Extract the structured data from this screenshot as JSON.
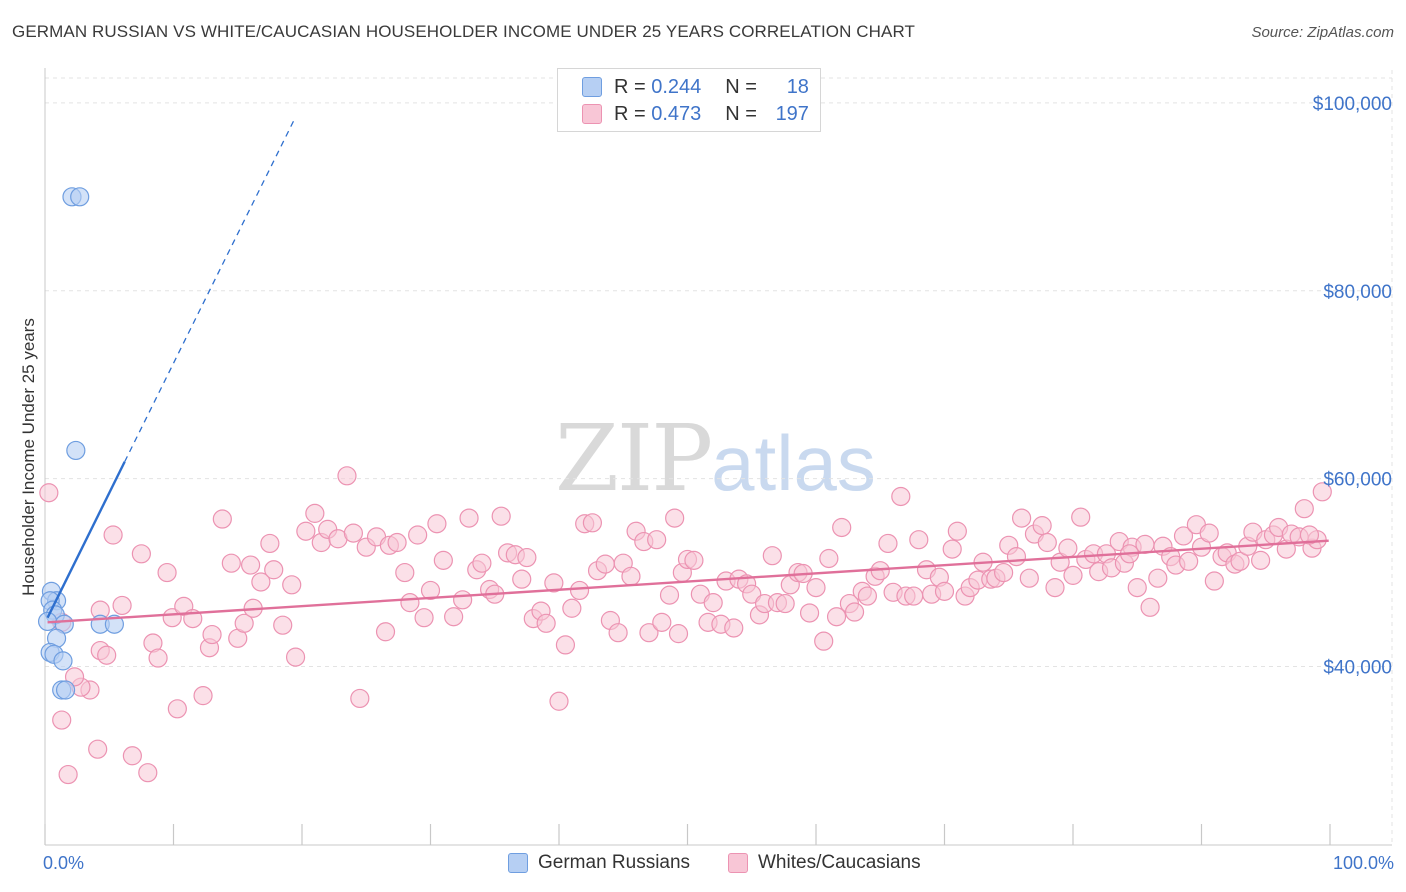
{
  "header": {
    "title": "GERMAN RUSSIAN VS WHITE/CAUCASIAN HOUSEHOLDER INCOME UNDER 25 YEARS CORRELATION CHART",
    "source": "Source: ZipAtlas.com"
  },
  "legend": {
    "rows": [
      {
        "r_label": "R =",
        "r_value": "0.244",
        "n_label": "N =",
        "n_value": "18"
      },
      {
        "r_label": "R =",
        "r_value": "0.473",
        "n_label": "N =",
        "n_value": "197"
      }
    ]
  },
  "bottom_legend": {
    "items": [
      "German Russians",
      "Whites/Caucasians"
    ]
  },
  "watermark": {
    "zip": "ZIP",
    "atlas": "atlas"
  },
  "colors": {
    "blue_fill": "#b6cff3",
    "blue_stroke": "#6f9ee0",
    "blue_line": "#2e6fce",
    "pink_fill": "#f8c6d6",
    "pink_stroke": "#ec93b2",
    "pink_line": "#e0709a",
    "tick_text": "#3f74c9",
    "grid": "#e3e3e3"
  },
  "chart_data": {
    "type": "scatter",
    "title": "GERMAN RUSSIAN VS WHITE/CAUCASIAN HOUSEHOLDER INCOME UNDER 25 YEARS CORRELATION CHART",
    "xlabel": "",
    "ylabel": "Householder Income Under 25 years",
    "xlim": [
      0,
      100
    ],
    "ylim": [
      21000,
      103500
    ],
    "x_ticks": [
      "0.0%",
      "100.0%"
    ],
    "y_ticks": [
      {
        "value": 40000,
        "label": "$40,000"
      },
      {
        "value": 60000,
        "label": "$60,000"
      },
      {
        "value": 80000,
        "label": "$80,000"
      },
      {
        "value": 100000,
        "label": "$100,000"
      }
    ],
    "grid": true,
    "legend_position": "top-center",
    "series": [
      {
        "name": "German Russians",
        "r": 0.244,
        "n": 18,
        "trend": {
          "x": [
            0.2,
            6.2
          ],
          "y": [
            45200,
            61800
          ],
          "dashed_to": [
            19.5,
            98500
          ]
        },
        "points": [
          [
            2.1,
            90000
          ],
          [
            2.7,
            90000
          ],
          [
            2.4,
            63000
          ],
          [
            0.5,
            48000
          ],
          [
            0.9,
            47000
          ],
          [
            0.4,
            47000
          ],
          [
            0.6,
            46000
          ],
          [
            0.8,
            45500
          ],
          [
            0.2,
            44800
          ],
          [
            1.5,
            44500
          ],
          [
            4.3,
            44500
          ],
          [
            5.4,
            44500
          ],
          [
            0.9,
            43000
          ],
          [
            0.4,
            41500
          ],
          [
            0.7,
            41300
          ],
          [
            1.4,
            40600
          ],
          [
            1.3,
            37500
          ],
          [
            1.6,
            37500
          ]
        ]
      },
      {
        "name": "Whites/Caucasians",
        "r": 0.473,
        "n": 197,
        "trend": {
          "x": [
            0.2,
            99.9
          ],
          "y": [
            44700,
            53400
          ]
        },
        "points": [
          [
            0.3,
            58500
          ],
          [
            5.3,
            54000
          ],
          [
            7.5,
            52000
          ],
          [
            9.5,
            50000
          ],
          [
            6.0,
            46500
          ],
          [
            4.3,
            46000
          ],
          [
            1.3,
            44700
          ],
          [
            3.5,
            37500
          ],
          [
            2.8,
            37800
          ],
          [
            2.3,
            38900
          ],
          [
            1.3,
            34300
          ],
          [
            4.1,
            31200
          ],
          [
            1.8,
            28500
          ],
          [
            6.8,
            30500
          ],
          [
            8.0,
            28700
          ],
          [
            10.3,
            35500
          ],
          [
            12.3,
            36900
          ],
          [
            4.3,
            41700
          ],
          [
            4.8,
            41200
          ],
          [
            8.4,
            42500
          ],
          [
            8.8,
            40900
          ],
          [
            9.9,
            45200
          ],
          [
            10.8,
            46400
          ],
          [
            11.5,
            45100
          ],
          [
            12.8,
            42000
          ],
          [
            13.0,
            43400
          ],
          [
            13.8,
            55700
          ],
          [
            14.5,
            51000
          ],
          [
            15.0,
            43000
          ],
          [
            15.5,
            44600
          ],
          [
            16.0,
            50800
          ],
          [
            16.2,
            46200
          ],
          [
            16.8,
            49000
          ],
          [
            17.5,
            53100
          ],
          [
            17.8,
            50300
          ],
          [
            18.5,
            44400
          ],
          [
            19.2,
            48700
          ],
          [
            19.5,
            41000
          ],
          [
            20.3,
            54400
          ],
          [
            21.0,
            56300
          ],
          [
            21.5,
            53200
          ],
          [
            22.0,
            54600
          ],
          [
            22.8,
            53600
          ],
          [
            23.5,
            60300
          ],
          [
            24.0,
            54200
          ],
          [
            24.5,
            36600
          ],
          [
            25.0,
            52700
          ],
          [
            25.8,
            53800
          ],
          [
            26.5,
            43700
          ],
          [
            26.8,
            52900
          ],
          [
            27.4,
            53200
          ],
          [
            28.0,
            50000
          ],
          [
            28.4,
            46800
          ],
          [
            29.0,
            54000
          ],
          [
            29.5,
            45200
          ],
          [
            30.0,
            48100
          ],
          [
            30.5,
            55200
          ],
          [
            31.0,
            51300
          ],
          [
            31.8,
            45300
          ],
          [
            32.5,
            47100
          ],
          [
            33.0,
            55800
          ],
          [
            33.6,
            50300
          ],
          [
            34.0,
            51000
          ],
          [
            34.6,
            48200
          ],
          [
            35.0,
            47700
          ],
          [
            35.5,
            56000
          ],
          [
            36.0,
            52100
          ],
          [
            36.6,
            51900
          ],
          [
            37.1,
            49300
          ],
          [
            37.5,
            51600
          ],
          [
            38.0,
            45100
          ],
          [
            38.6,
            45900
          ],
          [
            39.0,
            44600
          ],
          [
            39.6,
            48900
          ],
          [
            40.0,
            36300
          ],
          [
            40.5,
            42300
          ],
          [
            41.0,
            46200
          ],
          [
            41.6,
            48100
          ],
          [
            42.0,
            55200
          ],
          [
            42.6,
            55300
          ],
          [
            43.0,
            50200
          ],
          [
            43.6,
            50900
          ],
          [
            44.0,
            44900
          ],
          [
            44.6,
            43600
          ],
          [
            45.0,
            51000
          ],
          [
            45.6,
            49600
          ],
          [
            46.0,
            54400
          ],
          [
            46.6,
            53300
          ],
          [
            47.0,
            43600
          ],
          [
            47.6,
            53500
          ],
          [
            48.0,
            44700
          ],
          [
            48.6,
            47600
          ],
          [
            49.0,
            55800
          ],
          [
            49.6,
            50000
          ],
          [
            50.0,
            51400
          ],
          [
            50.5,
            51300
          ],
          [
            51.0,
            47700
          ],
          [
            51.6,
            44700
          ],
          [
            52.0,
            46800
          ],
          [
            52.6,
            44500
          ],
          [
            53.0,
            49100
          ],
          [
            53.6,
            44100
          ],
          [
            54.0,
            49300
          ],
          [
            54.6,
            48800
          ],
          [
            55.0,
            47700
          ],
          [
            55.6,
            45500
          ],
          [
            56.0,
            46700
          ],
          [
            56.6,
            51800
          ],
          [
            57.0,
            46800
          ],
          [
            57.6,
            46700
          ],
          [
            58.0,
            48700
          ],
          [
            58.6,
            50000
          ],
          [
            59.0,
            49900
          ],
          [
            59.5,
            45700
          ],
          [
            60.0,
            48400
          ],
          [
            60.6,
            42700
          ],
          [
            61.0,
            51500
          ],
          [
            61.6,
            45300
          ],
          [
            62.0,
            54800
          ],
          [
            62.6,
            46700
          ],
          [
            63.0,
            45800
          ],
          [
            63.6,
            48000
          ],
          [
            64.0,
            47500
          ],
          [
            64.6,
            49600
          ],
          [
            65.0,
            50200
          ],
          [
            65.6,
            53100
          ],
          [
            66.0,
            47900
          ],
          [
            66.6,
            58100
          ],
          [
            67.0,
            47500
          ],
          [
            67.6,
            47500
          ],
          [
            68.0,
            53500
          ],
          [
            68.6,
            50300
          ],
          [
            69.0,
            47700
          ],
          [
            69.6,
            49500
          ],
          [
            70.0,
            48000
          ],
          [
            70.6,
            52500
          ],
          [
            71.0,
            54400
          ],
          [
            71.6,
            47500
          ],
          [
            72.0,
            48400
          ],
          [
            72.6,
            49200
          ],
          [
            73.0,
            51100
          ],
          [
            73.6,
            49300
          ],
          [
            74.0,
            49400
          ],
          [
            74.6,
            50000
          ],
          [
            75.0,
            52900
          ],
          [
            75.6,
            51700
          ],
          [
            76.0,
            55800
          ],
          [
            76.6,
            49400
          ],
          [
            77.0,
            54100
          ],
          [
            77.6,
            55000
          ],
          [
            78.0,
            53200
          ],
          [
            78.6,
            48400
          ],
          [
            79.0,
            51100
          ],
          [
            79.6,
            52600
          ],
          [
            80.0,
            49700
          ],
          [
            80.6,
            55900
          ],
          [
            81.0,
            51400
          ],
          [
            81.6,
            52000
          ],
          [
            82.0,
            50100
          ],
          [
            82.6,
            52000
          ],
          [
            83.0,
            50500
          ],
          [
            83.6,
            53300
          ],
          [
            84.0,
            51000
          ],
          [
            84.6,
            52700
          ],
          [
            85.0,
            48400
          ],
          [
            85.6,
            53000
          ],
          [
            86.0,
            46300
          ],
          [
            86.6,
            49400
          ],
          [
            87.0,
            52800
          ],
          [
            87.6,
            51700
          ],
          [
            88.0,
            50800
          ],
          [
            88.6,
            53900
          ],
          [
            89.0,
            51200
          ],
          [
            89.6,
            55100
          ],
          [
            90.0,
            52700
          ],
          [
            90.6,
            54200
          ],
          [
            91.0,
            49100
          ],
          [
            91.6,
            51700
          ],
          [
            92.0,
            52100
          ],
          [
            92.6,
            50900
          ],
          [
            93.0,
            51200
          ],
          [
            93.6,
            52800
          ],
          [
            94.0,
            54300
          ],
          [
            94.6,
            51300
          ],
          [
            95.0,
            53500
          ],
          [
            95.6,
            54000
          ],
          [
            96.0,
            54800
          ],
          [
            96.6,
            52500
          ],
          [
            97.0,
            54100
          ],
          [
            97.6,
            53800
          ],
          [
            98.0,
            56800
          ],
          [
            98.6,
            52600
          ],
          [
            99.0,
            53500
          ],
          [
            99.4,
            58600
          ],
          [
            98.4,
            54000
          ],
          [
            84.4,
            52000
          ],
          [
            49.3,
            43500
          ]
        ]
      }
    ]
  }
}
